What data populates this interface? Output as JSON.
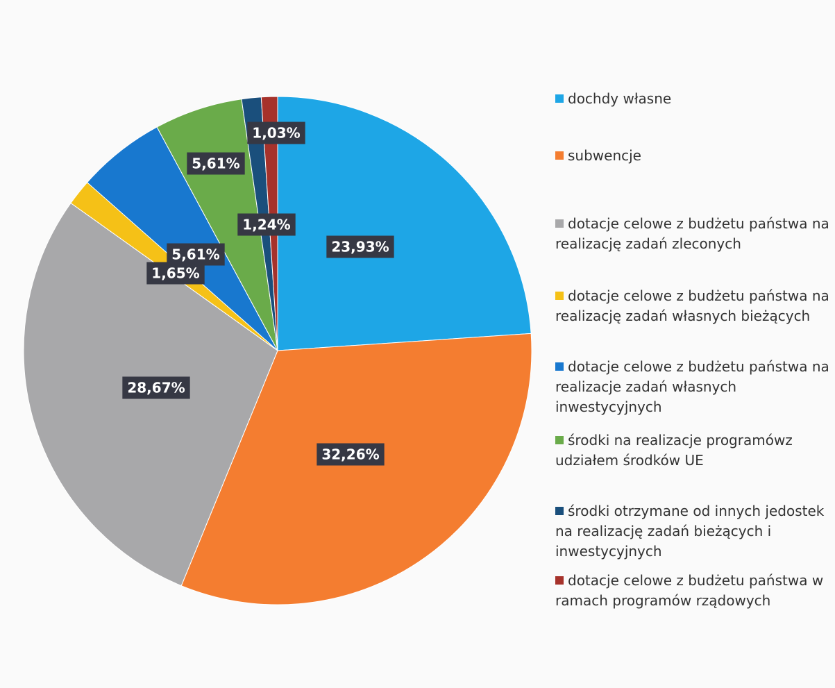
{
  "chart_data": {
    "type": "pie",
    "categories": [
      "dochdy własne",
      "subwencje",
      "dotacje celowe z budżetu państwa na realizację zadań zleconych",
      "dotacje celowe z budżetu państwa na realizację zadań własnych bieżących",
      "dotacje celowe z budżetu państwa na realizacje zadań własnych inwestycyjnych",
      "środki na realizacje programówz udziałem środków UE",
      "środki otrzymane od innych jedostek na realizację zadań bieżących i inwestycyjnych",
      "dotacje celowe z budżetu państwa w ramach programów rządowych"
    ],
    "values": [
      23.93,
      32.26,
      28.67,
      1.65,
      5.61,
      5.61,
      1.24,
      1.03
    ],
    "value_labels": [
      "23,93%",
      "32,26%",
      "28,67%",
      "1,65%",
      "5,61%",
      "5,61%",
      "1,24%",
      "1,03%"
    ],
    "colors": [
      "#1ea6e6",
      "#f47d30",
      "#a8a8aa",
      "#f5c117",
      "#1878cf",
      "#6aab4a",
      "#1a4f7c",
      "#a6322b"
    ],
    "legend": "right"
  }
}
